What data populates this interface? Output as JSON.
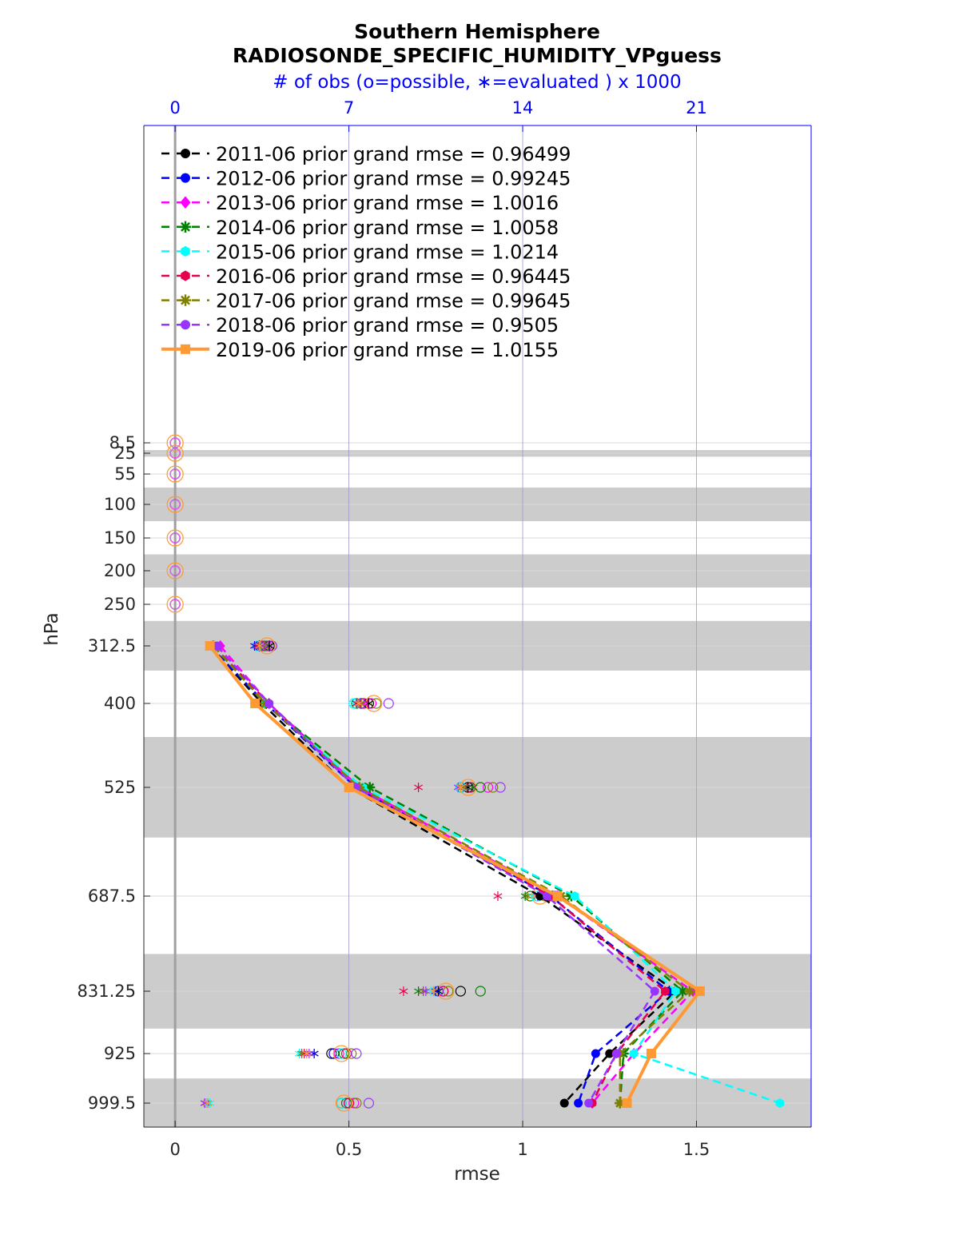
{
  "chart_data": {
    "type": "line",
    "title": "Southern Hemisphere",
    "subtitle": "RADIOSONDE_SPECIFIC_HUMIDITY_VPguess",
    "top_axis_label": "# of obs (o=possible, ∗=evaluated ) x 1000",
    "xlabel": "rmse",
    "ylabel": "hPa",
    "xlim": [
      -0.09,
      1.83
    ],
    "x_ticks": [
      "0",
      "0.5",
      "1",
      "1.5"
    ],
    "x_tick_values": [
      0,
      0.5,
      1,
      1.5
    ],
    "top_ticks": [
      "0",
      "7",
      "14",
      "21"
    ],
    "top_tick_values": [
      0,
      7,
      14,
      21
    ],
    "levels": [
      8.5,
      25,
      55,
      100,
      150,
      200,
      250,
      312.5,
      400,
      525,
      687.5,
      831.25,
      925,
      999.5
    ],
    "level_labels": [
      "8.5",
      "25",
      "55",
      "100",
      "150",
      "200",
      "250",
      "312.5",
      "400",
      "525",
      "687.5",
      "831.25",
      "925",
      "999.5"
    ],
    "shaded_bands": [
      [
        20,
        30
      ],
      [
        75,
        125
      ],
      [
        175,
        225
      ],
      [
        275,
        350
      ],
      [
        450,
        600
      ],
      [
        775,
        887.5
      ],
      [
        962.5,
        1037.5
      ]
    ],
    "grid": true,
    "legend_position": "top-left",
    "series": [
      {
        "name": "2011-06 prior grand rmse = 0.96499",
        "color": "#000000",
        "marker": "circle",
        "levels": [
          312.5,
          400,
          525,
          687.5,
          831.25,
          925,
          999.5
        ],
        "values": [
          0.1,
          0.25,
          0.5,
          1.05,
          1.44,
          1.25,
          1.12
        ]
      },
      {
        "name": "2012-06 prior grand rmse = 0.99245",
        "color": "#0000ff",
        "marker": "circle",
        "levels": [
          312.5,
          400,
          525,
          687.5,
          831.25,
          925,
          999.5
        ],
        "values": [
          0.1,
          0.26,
          0.52,
          1.08,
          1.42,
          1.21,
          1.16
        ]
      },
      {
        "name": "2013-06 prior grand rmse = 1.0016",
        "color": "#ff00ff",
        "marker": "diamond",
        "levels": [
          312.5,
          400,
          525,
          687.5,
          831.25,
          925,
          999.5
        ],
        "values": [
          0.13,
          0.27,
          0.53,
          1.1,
          1.49,
          1.32,
          1.2
        ]
      },
      {
        "name": "2014-06 prior grand rmse = 1.0058",
        "color": "#008000",
        "marker": "star",
        "levels": [
          312.5,
          400,
          525,
          687.5,
          831.25,
          925,
          999.5
        ],
        "values": [
          0.11,
          0.26,
          0.56,
          1.14,
          1.46,
          1.29,
          1.28
        ]
      },
      {
        "name": "2015-06 prior grand rmse = 1.0214",
        "color": "#00ffff",
        "marker": "hexagon",
        "levels": [
          312.5,
          400,
          525,
          687.5,
          831.25,
          925,
          999.5
        ],
        "values": [
          0.11,
          0.26,
          0.54,
          1.15,
          1.44,
          1.32,
          1.74
        ]
      },
      {
        "name": "2016-06 prior grand rmse = 0.96445",
        "color": "#e6004c",
        "marker": "hexagon",
        "levels": [
          312.5,
          400,
          525,
          687.5,
          831.25,
          925,
          999.5
        ],
        "values": [
          0.11,
          0.27,
          0.52,
          1.08,
          1.41,
          1.27,
          1.2
        ]
      },
      {
        "name": "2017-06 prior grand rmse = 0.99645",
        "color": "#808000",
        "marker": "star",
        "levels": [
          312.5,
          400,
          525,
          687.5,
          831.25,
          925,
          999.5
        ],
        "values": [
          0.11,
          0.26,
          0.53,
          1.11,
          1.48,
          1.28,
          1.28
        ]
      },
      {
        "name": "2018-06 prior grand rmse = 0.9505",
        "color": "#9933ff",
        "marker": "circle",
        "levels": [
          312.5,
          400,
          525,
          687.5,
          831.25,
          925,
          999.5
        ],
        "values": [
          0.12,
          0.27,
          0.52,
          1.07,
          1.38,
          1.27,
          1.19
        ]
      },
      {
        "name": "2019-06 prior grand rmse = 1.0155",
        "color": "#ff9933",
        "marker": "square",
        "levels": [
          312.5,
          400,
          525,
          687.5,
          831.25,
          925,
          999.5
        ],
        "values": [
          0.1,
          0.23,
          0.5,
          1.1,
          1.51,
          1.37,
          1.3
        ]
      }
    ],
    "obs_counts": {
      "possible": {
        "series_color_order": [
          "#000000",
          "#0000ff",
          "#ff00ff",
          "#008000",
          "#00ffff",
          "#e6004c",
          "#808000",
          "#9933ff",
          "#ff9933"
        ],
        "levels": [
          8.5,
          25,
          55,
          100,
          150,
          200,
          250,
          312.5,
          400,
          525,
          687.5,
          831.25,
          925,
          999.5
        ],
        "values_per_series": [
          [
            0,
            0,
            0,
            0,
            0,
            0,
            0,
            3.8,
            7.8,
            11.8,
            15.0,
            11.5,
            6.3,
            6.7
          ],
          [
            0,
            0,
            0,
            0,
            0,
            0,
            0,
            3.4,
            7.5,
            11.5,
            15.2,
            10.6,
            6.4,
            7.0
          ],
          [
            0,
            0,
            0,
            0,
            0,
            0,
            0,
            3.7,
            7.9,
            12.6,
            15.4,
            10.8,
            6.6,
            7.2
          ],
          [
            0,
            0,
            0,
            0,
            0,
            0,
            0,
            3.6,
            7.3,
            12.3,
            14.3,
            12.3,
            6.8,
            6.9
          ],
          [
            0,
            0,
            0,
            0,
            0,
            0,
            0,
            3.3,
            7.2,
            11.5,
            14.6,
            10.5,
            6.7,
            6.7
          ],
          [
            0,
            0,
            0,
            0,
            0,
            0,
            0,
            3.5,
            7.6,
            11.9,
            15.1,
            10.8,
            6.9,
            7.0
          ],
          [
            0,
            0,
            0,
            0,
            0,
            0,
            0,
            3.9,
            8.1,
            12.8,
            14.9,
            11.0,
            7.1,
            7.3
          ],
          [
            0,
            0,
            0,
            0,
            0,
            0,
            0,
            3.9,
            8.6,
            13.1,
            15.3,
            10.6,
            7.3,
            7.8
          ],
          [
            0,
            0,
            0,
            0,
            0,
            0,
            0,
            3.7,
            8.0,
            11.8,
            14.7,
            10.9,
            6.7,
            6.8
          ]
        ]
      },
      "evaluated": {
        "values_per_series": [
          [
            0,
            0,
            0,
            0,
            0,
            0,
            0,
            3.8,
            7.8,
            11.8,
            14.9,
            10.6,
            5.6,
            1.3
          ],
          [
            0,
            0,
            0,
            0,
            0,
            0,
            0,
            3.2,
            7.4,
            11.5,
            15.0,
            10.5,
            5.6,
            1.2
          ],
          [
            0,
            0,
            0,
            0,
            0,
            0,
            0,
            3.6,
            7.6,
            12.0,
            14.9,
            10.0,
            5.3,
            1.2
          ],
          [
            0,
            0,
            0,
            0,
            0,
            0,
            0,
            3.5,
            7.3,
            12.0,
            14.1,
            9.8,
            5.1,
            1.3
          ],
          [
            0,
            0,
            0,
            0,
            0,
            0,
            0,
            3.3,
            7.2,
            11.5,
            14.4,
            10.3,
            5.0,
            1.4
          ],
          [
            0,
            0,
            0,
            0,
            0,
            0,
            0,
            3.3,
            7.3,
            9.8,
            13.0,
            9.2,
            5.2,
            1.2
          ],
          [
            0,
            0,
            0,
            0,
            0,
            0,
            0,
            3.6,
            7.5,
            11.6,
            14.2,
            10.0,
            5.1,
            1.3
          ],
          [
            0,
            0,
            0,
            0,
            0,
            0,
            0,
            3.5,
            7.4,
            11.4,
            14.6,
            10.1,
            5.4,
            1.2
          ],
          [
            0,
            0,
            0,
            0,
            0,
            0,
            0,
            3.4,
            7.4,
            11.5,
            14.5,
            10.4,
            5.3,
            1.3
          ]
        ]
      }
    }
  }
}
